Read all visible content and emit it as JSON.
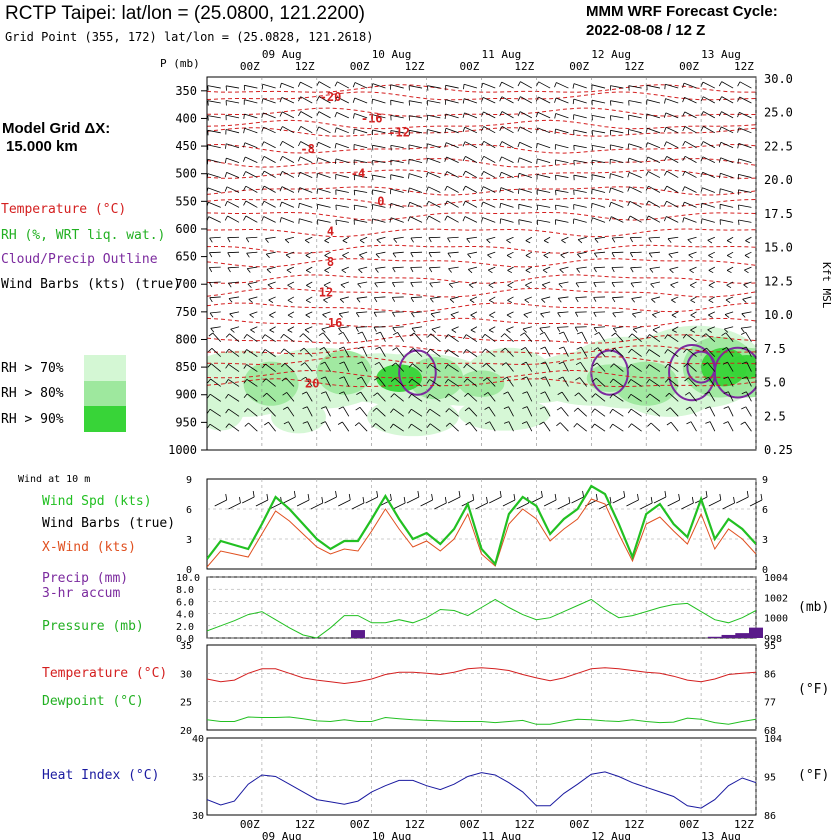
{
  "header": {
    "title": "RCTP Taipei:  lat/lon = (25.0800, 121.2200)",
    "grid_point": "Grid Point (355, 172) lat/lon = (25.0828, 121.2618)",
    "cycle_title": "MMM WRF Forecast Cycle:",
    "cycle_value": "2022-08-08 / 12  Z"
  },
  "left_panel": {
    "model_grid_label": "Model Grid ΔX:",
    "model_grid_value": "15.000 km",
    "legend": {
      "temperature": "Temperature (°C)",
      "rh": "RH (%, WRT liq. wat.)",
      "cloud": "Cloud/Precip Outline",
      "wind_barbs": "Wind Barbs (kts) (true)"
    },
    "rh_key": [
      {
        "label": "RH > 70%",
        "color": "#d4f7d4"
      },
      {
        "label": "RH > 80%",
        "color": "#9ee89e"
      },
      {
        "label": "RH > 90%",
        "color": "#38d438"
      }
    ]
  },
  "colors": {
    "temperature": "#d42020",
    "rh": "#22c022",
    "cloud": "#7b2a9e",
    "xwind": "#e05020",
    "heat_index": "#1a1aa0",
    "precip": "#5a1a8a"
  },
  "time_axis": {
    "dates": [
      "09 Aug",
      "10 Aug",
      "11 Aug",
      "12 Aug",
      "13 Aug"
    ],
    "hours": [
      "00Z",
      "12Z",
      "00Z",
      "12Z",
      "00Z",
      "12Z",
      "00Z",
      "12Z",
      "00Z",
      "12Z"
    ]
  },
  "chart_data": [
    {
      "type": "heatmap",
      "name": "time-height cross section",
      "ylabel": "P (mb)",
      "y2label": "Kft MSL",
      "pressure_ticks": [
        "350",
        "400",
        "450",
        "500",
        "550",
        "600",
        "650",
        "700",
        "750",
        "800",
        "850",
        "900",
        "950",
        "1000"
      ],
      "height_ticks": [
        "30.0",
        "25.0",
        "22.5",
        "20.0",
        "17.5",
        "15.0",
        "12.5",
        "10.0",
        "7.5",
        "5.0",
        "2.5",
        "0.25"
      ],
      "ylim": [
        1000,
        325
      ],
      "temperature_contour_labels": [
        {
          "text": "-20",
          "time": 27,
          "p": 361
        },
        {
          "text": "-16",
          "time": 36,
          "p": 400
        },
        {
          "text": "-12",
          "time": 42,
          "p": 425
        },
        {
          "text": "-8",
          "time": 22,
          "p": 455
        },
        {
          "text": "-4",
          "time": 33,
          "p": 500
        },
        {
          "text": "0",
          "time": 38,
          "p": 550
        },
        {
          "text": "4",
          "time": 27,
          "p": 605
        },
        {
          "text": "8",
          "time": 27,
          "p": 660
        },
        {
          "text": "12",
          "time": 26,
          "p": 715
        },
        {
          "text": "16",
          "time": 28,
          "p": 770
        },
        {
          "text": "20",
          "time": 23,
          "p": 880
        }
      ]
    },
    {
      "type": "line",
      "name": "10 m wind",
      "label": "Wind at 10 m",
      "series_labels": {
        "speed": "Wind Spd (kts)",
        "barbs": "Wind Barbs (true)",
        "xwind": "X-Wind (kts)"
      },
      "ylim": [
        0,
        9
      ],
      "y_ticks": [
        "9",
        "6",
        "3",
        "0"
      ],
      "x_hours": [
        0,
        3,
        6,
        9,
        12,
        15,
        18,
        21,
        24,
        27,
        30,
        33,
        36,
        39,
        42,
        45,
        48,
        51,
        54,
        57,
        60,
        63,
        66,
        69,
        72,
        75,
        78,
        81,
        84,
        87,
        90,
        93,
        96,
        99,
        102,
        105,
        108,
        111,
        114,
        117,
        120
      ],
      "series": [
        {
          "name": "Wind Spd (kts)",
          "values": [
            1.0,
            2.8,
            2.4,
            2.0,
            4.5,
            7.2,
            6.0,
            4.5,
            3.0,
            2.0,
            2.8,
            2.8,
            5.0,
            7.3,
            5.0,
            3.0,
            3.6,
            2.5,
            4.0,
            6.5,
            2.0,
            0.5,
            5.5,
            7.2,
            6.3,
            3.5,
            5.0,
            6.0,
            8.3,
            7.5,
            4.5,
            1.2,
            5.5,
            6.5,
            4.5,
            3.2,
            7.0,
            3.0,
            5.0,
            4.0,
            2.5
          ]
        },
        {
          "name": "X-Wind (kts)",
          "values": [
            0.2,
            1.8,
            1.5,
            1.2,
            3.5,
            5.8,
            4.8,
            3.5,
            2.2,
            1.5,
            2.0,
            1.8,
            3.8,
            6.0,
            4.0,
            2.2,
            2.8,
            1.8,
            3.0,
            5.5,
            1.5,
            0.3,
            4.5,
            6.0,
            5.0,
            2.8,
            4.0,
            5.0,
            7.0,
            6.5,
            3.5,
            0.8,
            4.5,
            5.2,
            3.8,
            2.5,
            5.5,
            2.0,
            4.0,
            3.0,
            1.5
          ]
        }
      ]
    },
    {
      "type": "line",
      "name": "precip and pressure",
      "series_labels": {
        "precip_line1": "Precip (mm)",
        "precip_line2": "3-hr accum",
        "pressure": "Pressure (mb)"
      },
      "precip_ticks": [
        "10.0",
        "8.0",
        "6.0",
        "4.0",
        "2.0",
        "0.0"
      ],
      "pressure_ticks": [
        "1004",
        "1002",
        "1000",
        "998"
      ],
      "pressure_unit": "(mb)",
      "ylim_precip": [
        0,
        10
      ],
      "ylim_pressure": [
        998,
        1004
      ],
      "pressure_values": [
        998.7,
        999.2,
        999.7,
        1000.3,
        1000.6,
        999.8,
        999.0,
        998.3,
        998.0,
        999.0,
        1000.2,
        1000.2,
        999.5,
        999.5,
        999.8,
        999.5,
        1000.0,
        1000.8,
        1000.7,
        1000.2,
        1001.0,
        1001.8,
        1001.0,
        1000.3,
        999.8,
        1000.0,
        1000.6,
        1001.2,
        1001.8,
        1000.8,
        1000.0,
        1000.2,
        1000.6,
        1001.0,
        1001.3,
        1001.4,
        1000.6,
        999.8,
        999.5,
        1000.0,
        1000.7
      ],
      "precip_values": [
        0,
        0,
        0,
        0,
        0,
        0,
        0,
        0,
        0,
        0,
        0,
        1.3,
        0,
        0,
        0,
        0,
        0,
        0,
        0,
        0,
        0,
        0,
        0,
        0,
        0,
        0,
        0,
        0,
        0,
        0,
        0,
        0,
        0,
        0,
        0,
        0,
        0,
        0.2,
        0.5,
        0.8,
        1.7
      ]
    },
    {
      "type": "line",
      "name": "temperature and dewpoint",
      "series_labels": {
        "temperature": "Temperature (°C)",
        "dewpoint": "Dewpoint (°C)"
      },
      "c_ticks": [
        "35",
        "30",
        "25",
        "20"
      ],
      "f_ticks": [
        "95",
        "86",
        "77",
        "68"
      ],
      "f_unit": "(°F)",
      "ylim_c": [
        20,
        35
      ],
      "series": [
        {
          "name": "Temperature (°C)",
          "values": [
            29.0,
            28.5,
            28.8,
            30.0,
            30.8,
            30.8,
            30.0,
            29.2,
            28.8,
            28.5,
            28.2,
            28.5,
            29.0,
            29.8,
            30.2,
            30.2,
            30.0,
            29.8,
            30.2,
            30.8,
            31.0,
            30.8,
            30.5,
            29.8,
            29.2,
            28.7,
            29.2,
            30.0,
            30.8,
            31.0,
            30.8,
            30.5,
            30.2,
            30.0,
            29.5,
            28.8,
            28.5,
            29.0,
            29.8,
            30.0,
            30.2
          ]
        },
        {
          "name": "Dewpoint (°C)",
          "values": [
            21.8,
            21.5,
            21.5,
            22.3,
            22.2,
            22.2,
            22.3,
            22.0,
            21.6,
            21.5,
            21.8,
            21.5,
            21.5,
            22.2,
            22.0,
            21.8,
            21.7,
            21.6,
            21.5,
            21.5,
            21.5,
            21.3,
            21.5,
            21.7,
            21.0,
            21.0,
            21.5,
            21.9,
            21.8,
            21.6,
            21.5,
            21.8,
            21.5,
            21.3,
            21.4,
            22.1,
            21.9,
            21.3,
            21.0,
            21.5,
            21.9
          ]
        }
      ]
    },
    {
      "type": "line",
      "name": "heat index",
      "series_labels": {
        "heat_index": "Heat Index (°C)"
      },
      "c_ticks": [
        "40",
        "35",
        "30"
      ],
      "f_ticks": [
        "104",
        "95",
        "86"
      ],
      "f_unit": "(°F)",
      "ylim_c": [
        30,
        40
      ],
      "series": [
        {
          "name": "Heat Index (°C)",
          "values": [
            32.0,
            31.3,
            31.8,
            34.0,
            35.2,
            35.0,
            34.0,
            33.0,
            32.0,
            31.7,
            31.4,
            31.8,
            33.0,
            33.8,
            34.5,
            34.5,
            33.8,
            33.3,
            34.0,
            35.0,
            35.5,
            35.2,
            34.2,
            33.0,
            31.2,
            31.2,
            32.8,
            34.0,
            35.3,
            35.6,
            35.0,
            34.2,
            33.6,
            33.0,
            32.4,
            31.2,
            30.9,
            32.0,
            33.8,
            34.8,
            34.2
          ]
        }
      ]
    }
  ]
}
